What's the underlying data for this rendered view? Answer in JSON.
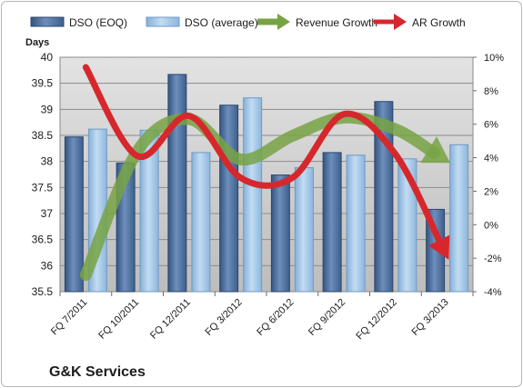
{
  "chart_data": {
    "type": "bar",
    "title": "",
    "ylabel": "Days",
    "ylim": [
      35.5,
      40
    ],
    "yticks": [
      "35.5",
      "36",
      "36.5",
      "37",
      "37.5",
      "38",
      "38.5",
      "39",
      "39.5",
      "40"
    ],
    "y2lim": [
      -4,
      10
    ],
    "y2ticks": [
      "-4%",
      "-2%",
      "0%",
      "2%",
      "4%",
      "6%",
      "8%",
      "10%"
    ],
    "categories": [
      "FQ 7/2011",
      "FQ 10/2011",
      "FQ 12/2011",
      "FQ 3/2012",
      "FQ 6/2012",
      "FQ 9/2012",
      "FQ 12/2012",
      "FQ 3/2013"
    ],
    "series": [
      {
        "name": "DSO (EOQ)",
        "kind": "bar",
        "axis": "left",
        "color": "#4a6d9c",
        "values": [
          38.47,
          37.97,
          39.67,
          39.08,
          37.74,
          38.17,
          39.15,
          37.08
        ]
      },
      {
        "name": "DSO (average)",
        "kind": "bar",
        "axis": "left",
        "color": "#9cc3e6",
        "values": [
          38.62,
          38.6,
          38.17,
          39.22,
          37.88,
          38.12,
          38.05,
          38.32
        ]
      },
      {
        "name": "Revenue Growth",
        "kind": "line",
        "axis": "right",
        "color": "#77a344",
        "values": [
          -3.0,
          4.4,
          6.3,
          3.9,
          5.3,
          6.4,
          5.7,
          3.8
        ]
      },
      {
        "name": "AR Growth",
        "kind": "line",
        "axis": "right",
        "color": "#d6282c",
        "values": [
          9.4,
          4.1,
          6.5,
          2.8,
          2.8,
          6.6,
          4.2,
          -1.9
        ]
      }
    ],
    "legend_position": "top",
    "grid": true
  },
  "company_name": "G&K Services"
}
